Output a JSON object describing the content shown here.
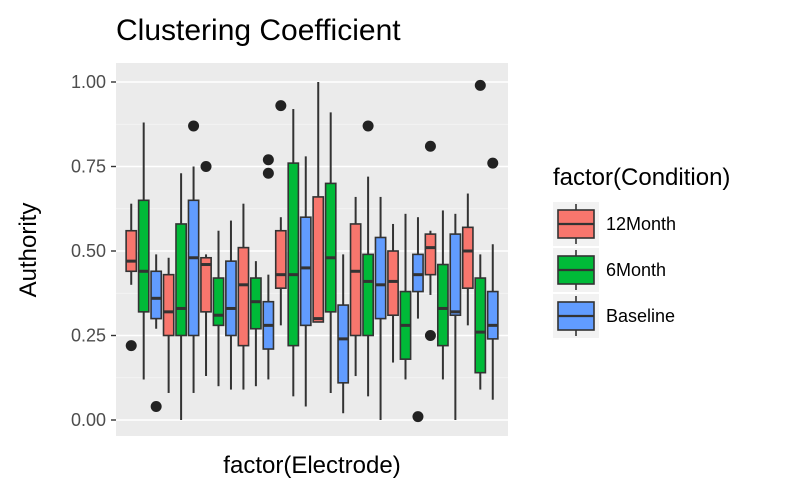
{
  "chart_data": {
    "type": "boxplot",
    "title": "Clustering Coefficient",
    "xlabel": "factor(Electrode)",
    "ylabel": "Authority",
    "ylim": [
      -0.04,
      1.05
    ],
    "yticks": [
      0.0,
      0.25,
      0.5,
      0.75,
      1.0
    ],
    "ytick_labels": [
      "0.00",
      "0.25",
      "0.50",
      "0.75",
      "1.00"
    ],
    "grid": true,
    "legend": {
      "title": "factor(Condition)",
      "position": "right",
      "entries": [
        {
          "label": "12Month",
          "color": "#F8766D"
        },
        {
          "label": "6Month",
          "color": "#00BA38"
        },
        {
          "label": "Baseline",
          "color": "#619CFF"
        }
      ]
    },
    "boxes": [
      {
        "c": 0,
        "wl": 0.4,
        "q1": 0.44,
        "med": 0.47,
        "q3": 0.56,
        "wh": 0.64,
        "out": [
          0.22
        ]
      },
      {
        "c": 1,
        "wl": 0.12,
        "q1": 0.32,
        "med": 0.44,
        "q3": 0.65,
        "wh": 0.88,
        "out": []
      },
      {
        "c": 2,
        "wl": 0.27,
        "q1": 0.3,
        "med": 0.36,
        "q3": 0.44,
        "wh": 0.49,
        "out": [
          0.04
        ]
      },
      {
        "c": 0,
        "wl": 0.08,
        "q1": 0.25,
        "med": 0.32,
        "q3": 0.43,
        "wh": 0.48,
        "out": []
      },
      {
        "c": 1,
        "wl": 0.0,
        "q1": 0.25,
        "med": 0.33,
        "q3": 0.58,
        "wh": 0.73,
        "out": []
      },
      {
        "c": 2,
        "wl": 0.08,
        "q1": 0.25,
        "med": 0.48,
        "q3": 0.65,
        "wh": 0.75,
        "out": [
          0.87
        ]
      },
      {
        "c": 0,
        "wl": 0.13,
        "q1": 0.32,
        "med": 0.46,
        "q3": 0.48,
        "wh": 0.49,
        "out": [
          0.75
        ]
      },
      {
        "c": 1,
        "wl": 0.1,
        "q1": 0.28,
        "med": 0.31,
        "q3": 0.42,
        "wh": 0.56,
        "out": []
      },
      {
        "c": 2,
        "wl": 0.09,
        "q1": 0.25,
        "med": 0.33,
        "q3": 0.47,
        "wh": 0.59,
        "out": []
      },
      {
        "c": 0,
        "wl": 0.09,
        "q1": 0.22,
        "med": 0.4,
        "q3": 0.51,
        "wh": 0.64,
        "out": []
      },
      {
        "c": 1,
        "wl": 0.1,
        "q1": 0.27,
        "med": 0.35,
        "q3": 0.42,
        "wh": 0.47,
        "out": []
      },
      {
        "c": 2,
        "wl": 0.12,
        "q1": 0.21,
        "med": 0.28,
        "q3": 0.35,
        "wh": 0.43,
        "out": [
          0.73,
          0.77
        ]
      },
      {
        "c": 0,
        "wl": 0.28,
        "q1": 0.39,
        "med": 0.43,
        "q3": 0.56,
        "wh": 0.6,
        "out": [
          0.93
        ]
      },
      {
        "c": 1,
        "wl": 0.07,
        "q1": 0.22,
        "med": 0.43,
        "q3": 0.76,
        "wh": 0.92,
        "out": []
      },
      {
        "c": 2,
        "wl": 0.04,
        "q1": 0.28,
        "med": 0.45,
        "q3": 0.6,
        "wh": 0.78,
        "out": []
      },
      {
        "c": 0,
        "wl": 0.29,
        "q1": 0.29,
        "med": 0.3,
        "q3": 0.66,
        "wh": 1.0,
        "out": []
      },
      {
        "c": 1,
        "wl": 0.08,
        "q1": 0.32,
        "med": 0.48,
        "q3": 0.7,
        "wh": 0.91,
        "out": []
      },
      {
        "c": 2,
        "wl": 0.02,
        "q1": 0.11,
        "med": 0.24,
        "q3": 0.34,
        "wh": 0.49,
        "out": []
      },
      {
        "c": 0,
        "wl": 0.13,
        "q1": 0.25,
        "med": 0.44,
        "q3": 0.58,
        "wh": 0.66,
        "out": []
      },
      {
        "c": 1,
        "wl": 0.07,
        "q1": 0.25,
        "med": 0.41,
        "q3": 0.49,
        "wh": 0.72,
        "out": [
          0.87
        ]
      },
      {
        "c": 2,
        "wl": 0.0,
        "q1": 0.3,
        "med": 0.4,
        "q3": 0.54,
        "wh": 0.66,
        "out": []
      },
      {
        "c": 0,
        "wl": 0.17,
        "q1": 0.31,
        "med": 0.41,
        "q3": 0.5,
        "wh": 0.58,
        "out": []
      },
      {
        "c": 1,
        "wl": 0.12,
        "q1": 0.18,
        "med": 0.28,
        "q3": 0.38,
        "wh": 0.61,
        "out": []
      },
      {
        "c": 2,
        "wl": 0.3,
        "q1": 0.38,
        "med": 0.43,
        "q3": 0.49,
        "wh": 0.6,
        "out": [
          0.01
        ]
      },
      {
        "c": 0,
        "wl": 0.37,
        "q1": 0.43,
        "med": 0.51,
        "q3": 0.55,
        "wh": 0.56,
        "out": [
          0.25,
          0.81
        ]
      },
      {
        "c": 1,
        "wl": 0.12,
        "q1": 0.22,
        "med": 0.33,
        "q3": 0.46,
        "wh": 0.62,
        "out": []
      },
      {
        "c": 2,
        "wl": 0.0,
        "q1": 0.31,
        "med": 0.32,
        "q3": 0.55,
        "wh": 0.61,
        "out": []
      },
      {
        "c": 0,
        "wl": 0.28,
        "q1": 0.39,
        "med": 0.5,
        "q3": 0.57,
        "wh": 0.67,
        "out": []
      },
      {
        "c": 1,
        "wl": 0.09,
        "q1": 0.14,
        "med": 0.26,
        "q3": 0.42,
        "wh": 0.49,
        "out": [
          0.99
        ]
      },
      {
        "c": 2,
        "wl": 0.06,
        "q1": 0.24,
        "med": 0.28,
        "q3": 0.38,
        "wh": 0.52,
        "out": [
          0.76
        ]
      }
    ]
  }
}
